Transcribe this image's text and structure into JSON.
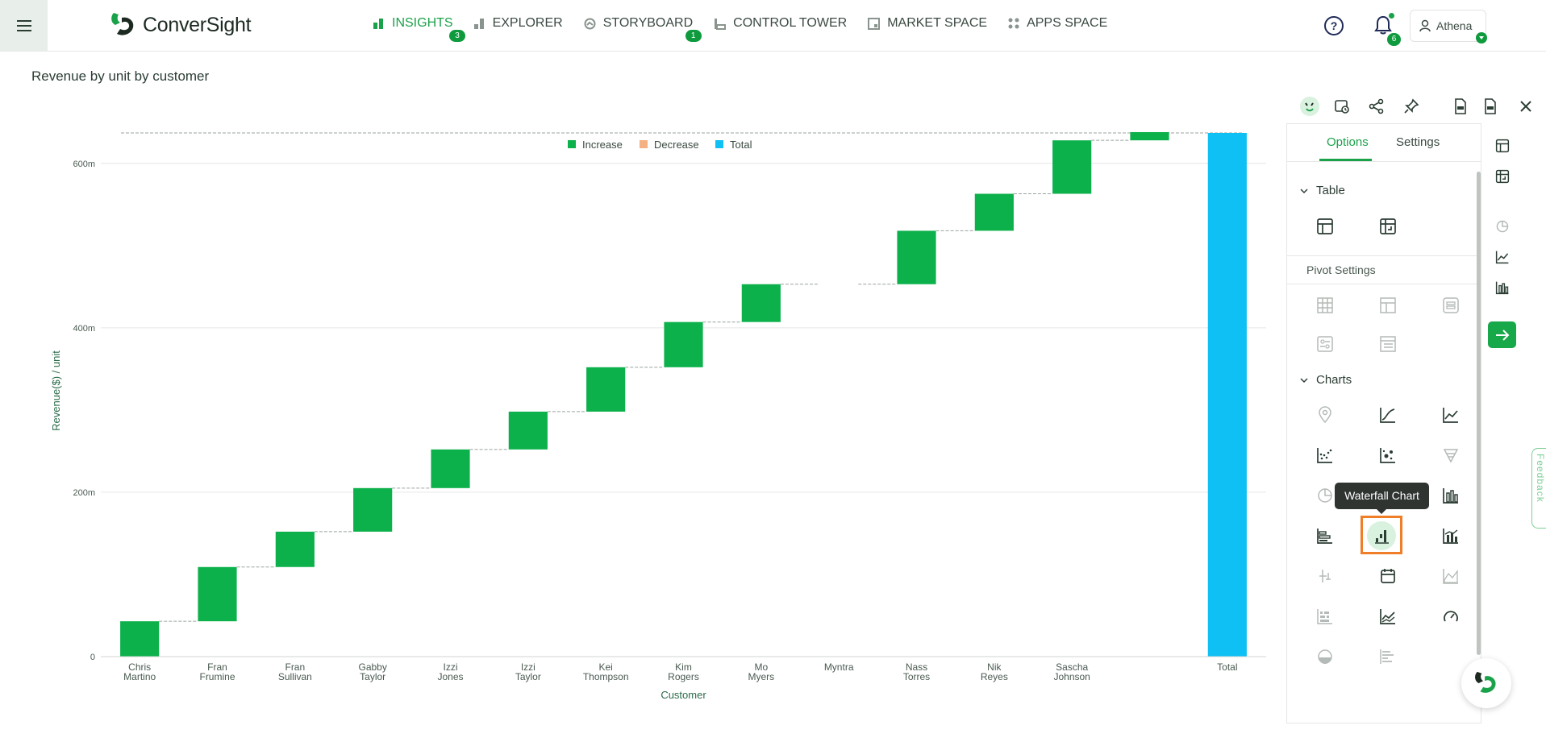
{
  "app": {
    "name": "ConverSight"
  },
  "nav": [
    {
      "label": "INSIGHTS",
      "icon": "insights-icon",
      "badge": "3",
      "active": true
    },
    {
      "label": "EXPLORER",
      "icon": "explorer-icon",
      "badge": null,
      "active": false
    },
    {
      "label": "STORYBOARD",
      "icon": "storyboard-icon",
      "badge": "1",
      "active": false
    },
    {
      "label": "CONTROL TOWER",
      "icon": "control-tower-icon",
      "badge": null,
      "active": false
    },
    {
      "label": "MARKET SPACE",
      "icon": "market-space-icon",
      "badge": null,
      "active": false
    },
    {
      "label": "APPS SPACE",
      "icon": "apps-space-icon",
      "badge": null,
      "active": false
    }
  ],
  "header": {
    "notifications_count": "6",
    "user_name": "Athena"
  },
  "page": {
    "title": "Revenue by unit by customer"
  },
  "panel": {
    "tabs": [
      "Options",
      "Settings"
    ],
    "sections": {
      "table": "Table",
      "pivot": "Pivot Settings",
      "charts": "Charts"
    },
    "tooltip": "Waterfall Chart"
  },
  "feedback_label": "Feedback",
  "colors": {
    "increase": "#0db14b",
    "decrease": "#f4b183",
    "total": "#0fc0f5",
    "brand": "#1aa24a"
  },
  "chart_data": {
    "type": "waterfall",
    "title": "Revenue by unit by customer",
    "xlabel": "Customer",
    "ylabel": "Revenue($) / unit",
    "legend": [
      "Increase",
      "Decrease",
      "Total"
    ],
    "legend_position": "top-center",
    "ylim": [
      0,
      637
    ],
    "yticks": [
      0,
      200,
      400,
      600
    ],
    "ytick_labels": [
      "0",
      "200m",
      "400m",
      "600m"
    ],
    "categories": [
      [
        "Chris",
        "Martino"
      ],
      [
        "Fran",
        "Frumine"
      ],
      [
        "Fran",
        "Sullivan"
      ],
      [
        "Gabby",
        "Taylor"
      ],
      [
        "Izzi",
        "Jones"
      ],
      [
        "Izzi",
        "Taylor"
      ],
      [
        "Kei",
        "Thompson"
      ],
      [
        "Kim",
        "Rogers"
      ],
      [
        "Mo",
        "Myers"
      ],
      [
        "Myntra",
        ""
      ],
      [
        "Nass",
        "Torres"
      ],
      [
        "Nik",
        "Reyes"
      ],
      [
        "Sascha",
        "Johnson"
      ],
      [
        "",
        ""
      ],
      [
        "Total",
        ""
      ]
    ],
    "values": [
      43,
      66,
      43,
      53,
      47,
      46,
      54,
      55,
      46,
      0,
      65,
      45,
      65,
      10,
      637
    ],
    "kinds": [
      "increase",
      "increase",
      "increase",
      "increase",
      "increase",
      "increase",
      "increase",
      "increase",
      "increase",
      "increase",
      "increase",
      "increase",
      "increase",
      "increase",
      "total"
    ]
  }
}
